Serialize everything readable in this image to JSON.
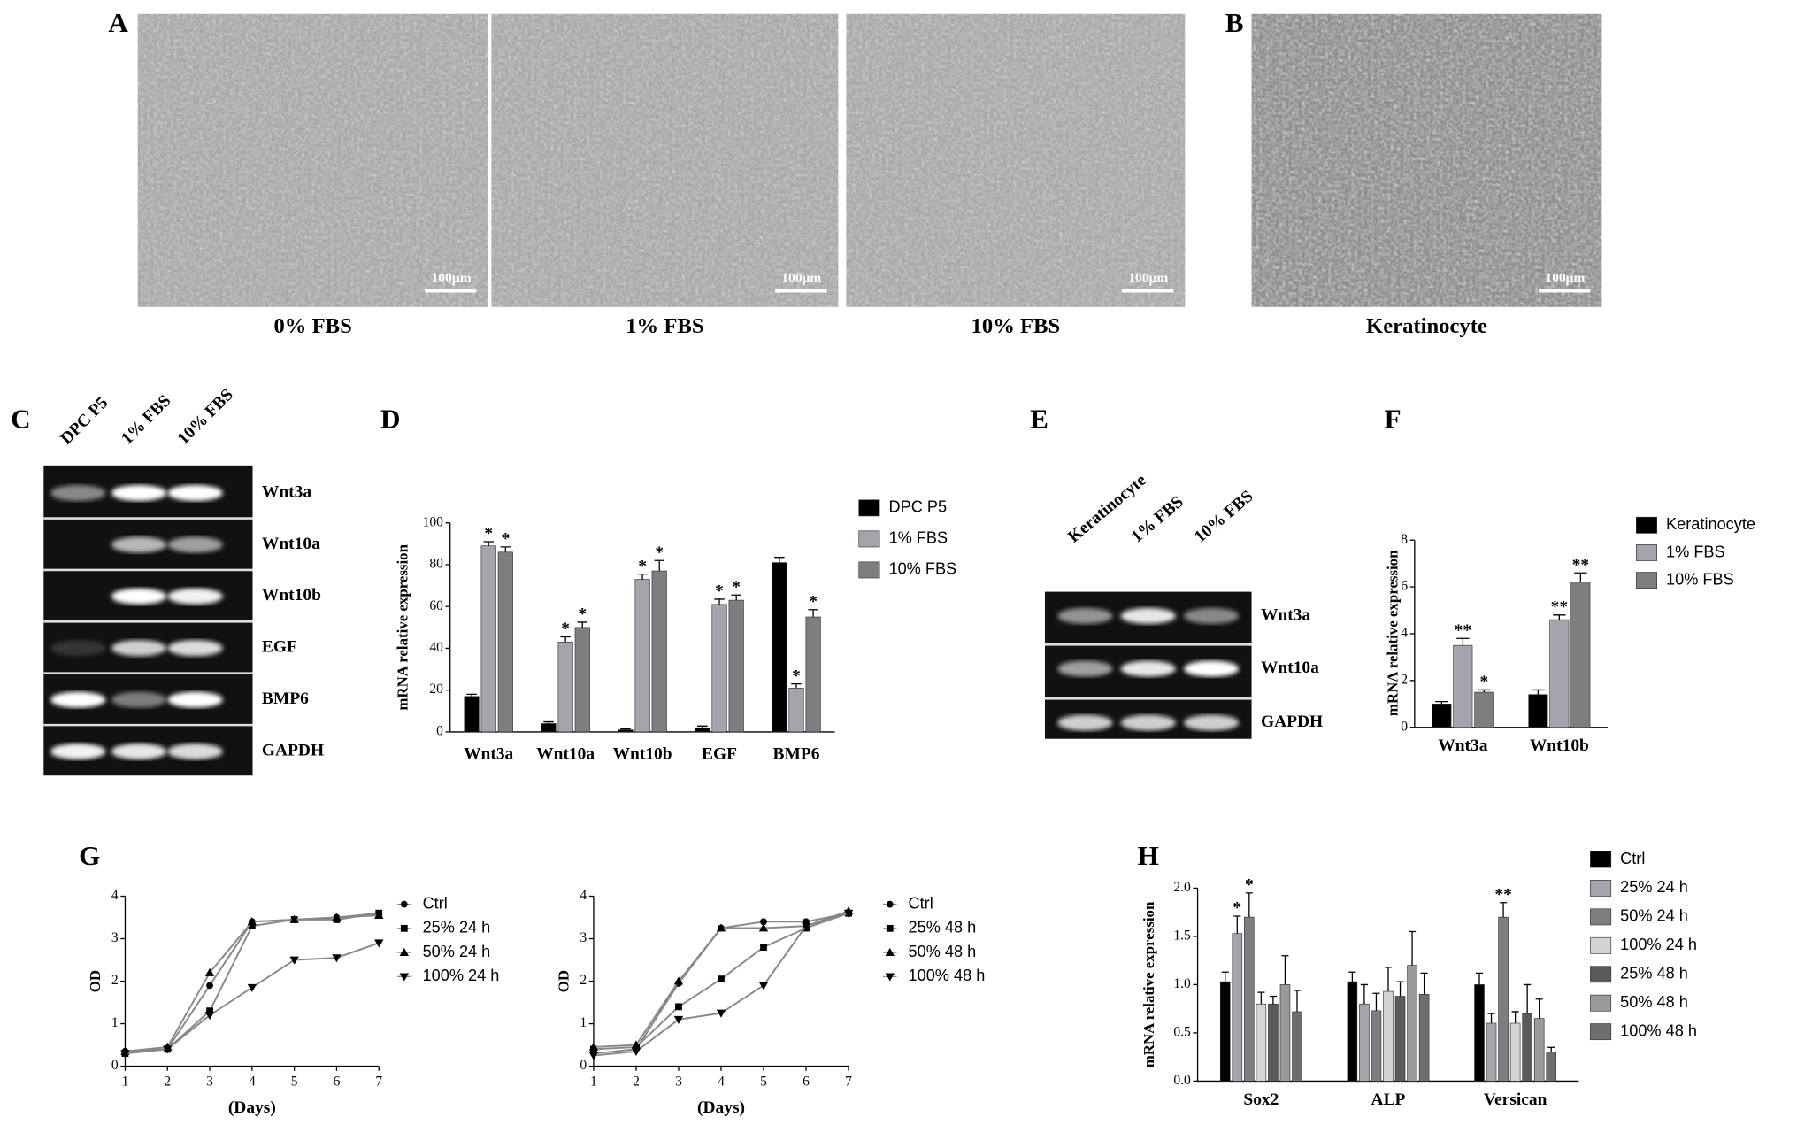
{
  "panel_labels": [
    "A",
    "B",
    "C",
    "D",
    "E",
    "F",
    "G",
    "H"
  ],
  "micrographs": [
    {
      "caption": "0% FBS",
      "scale_bar": "100μm"
    },
    {
      "caption": "1% FBS",
      "scale_bar": "100μm"
    },
    {
      "caption": "10% FBS",
      "scale_bar": "100μm"
    },
    {
      "caption": "Keratinocyte",
      "scale_bar": "100μm"
    }
  ],
  "gels": [
    {
      "lanes": [
        "DPC P5",
        "1% FBS",
        "10% FBS"
      ],
      "bands": [
        "Wnt3a",
        "Wnt10a",
        "Wnt10b",
        "EGF",
        "BMP6",
        "GAPDH"
      ]
    },
    {
      "lanes": [
        "Keratinocyte",
        "1% FBS",
        "10% FBS"
      ],
      "bands": [
        "Wnt3a",
        "Wnt10a",
        "GAPDH"
      ]
    }
  ],
  "chart_data": [
    {
      "type": "bar",
      "y_label": "mRNA relative expression",
      "categories": [
        "Wnt3a",
        "Wnt10a",
        "Wnt10b",
        "EGF",
        "BMP6"
      ],
      "ylim": [
        0,
        100
      ],
      "yticks": [
        0,
        20,
        40,
        60,
        80,
        100
      ],
      "series": [
        {
          "name": "DPC P5",
          "color": "#000000",
          "values": [
            17,
            4,
            1,
            2,
            81
          ],
          "errors": [
            1,
            0.8,
            0.4,
            0.8,
            2.5
          ],
          "annotations": [
            null,
            null,
            null,
            null,
            null
          ]
        },
        {
          "name": "1% FBS",
          "color": "#a4a4ac",
          "values": [
            89,
            43,
            73,
            61,
            21
          ],
          "errors": [
            2,
            2.5,
            2.5,
            2.5,
            2
          ],
          "annotations": [
            "*",
            "*",
            "*",
            "*",
            "*"
          ]
        },
        {
          "name": "10% FBS",
          "color": "#7e7e80",
          "values": [
            86,
            50,
            77,
            63,
            55
          ],
          "errors": [
            2.5,
            2.5,
            5,
            2.5,
            3.5
          ],
          "annotations": [
            "*",
            "*",
            "*",
            "*",
            "*"
          ]
        }
      ]
    },
    {
      "type": "bar",
      "y_label": "mRNA relative expression",
      "categories": [
        "Wnt3a",
        "Wnt10b"
      ],
      "ylim": [
        0,
        8
      ],
      "yticks": [
        0,
        2,
        4,
        6,
        8
      ],
      "series": [
        {
          "name": "Keratinocyte",
          "color": "#000000",
          "values": [
            1.0,
            1.4
          ],
          "errors": [
            0.1,
            0.2
          ],
          "annotations": [
            null,
            null
          ]
        },
        {
          "name": "1% FBS",
          "color": "#a4a4ac",
          "values": [
            3.5,
            4.6
          ],
          "errors": [
            0.3,
            0.2
          ],
          "annotations": [
            "**",
            "**"
          ]
        },
        {
          "name": "10% FBS",
          "color": "#7e7e80",
          "values": [
            1.5,
            6.2
          ],
          "errors": [
            0.1,
            0.4
          ],
          "annotations": [
            "*",
            "**"
          ]
        }
      ]
    },
    {
      "type": "line",
      "y_label": "OD",
      "x_label": "(Days)",
      "line_color": "#888888",
      "x": [
        1,
        2,
        3,
        4,
        5,
        6,
        7
      ],
      "xlim": [
        1,
        7
      ],
      "xticks": [
        1,
        2,
        3,
        4,
        5,
        6,
        7
      ],
      "ylim": [
        0,
        4
      ],
      "yticks": [
        0,
        1,
        2,
        3,
        4
      ],
      "series": [
        {
          "name": "Ctrl",
          "color": "#000000",
          "marker": "circle",
          "values": [
            0.35,
            0.4,
            1.9,
            3.4,
            3.45,
            3.5,
            3.6
          ]
        },
        {
          "name": "25% 24 h",
          "color": "#000000",
          "marker": "square",
          "values": [
            0.3,
            0.4,
            1.3,
            3.3,
            3.45,
            3.45,
            3.6
          ]
        },
        {
          "name": "50% 24 h",
          "color": "#000000",
          "marker": "triangle-up",
          "values": [
            0.35,
            0.45,
            2.2,
            3.4,
            3.45,
            3.5,
            3.55
          ]
        },
        {
          "name": "100% 24 h",
          "color": "#000000",
          "marker": "triangle-down",
          "values": [
            0.3,
            0.4,
            1.2,
            1.85,
            2.5,
            2.55,
            2.9
          ]
        }
      ]
    },
    {
      "type": "line",
      "y_label": "OD",
      "x_label": "(Days)",
      "line_color": "#888888",
      "x": [
        1,
        2,
        3,
        4,
        5,
        6,
        7
      ],
      "xlim": [
        1,
        7
      ],
      "xticks": [
        1,
        2,
        3,
        4,
        5,
        6,
        7
      ],
      "ylim": [
        0,
        4
      ],
      "yticks": [
        0,
        1,
        2,
        3,
        4
      ],
      "series": [
        {
          "name": "Ctrl",
          "color": "#000000",
          "marker": "circle",
          "values": [
            0.3,
            0.4,
            1.95,
            3.25,
            3.4,
            3.4,
            3.6
          ]
        },
        {
          "name": "25% 48 h",
          "color": "#000000",
          "marker": "square",
          "values": [
            0.4,
            0.45,
            1.4,
            2.05,
            2.8,
            3.25,
            3.6
          ]
        },
        {
          "name": "50% 48 h",
          "color": "#000000",
          "marker": "triangle-up",
          "values": [
            0.45,
            0.5,
            2.0,
            3.25,
            3.25,
            3.3,
            3.65
          ]
        },
        {
          "name": "100% 48 h",
          "color": "#000000",
          "marker": "triangle-down",
          "values": [
            0.25,
            0.35,
            1.1,
            1.25,
            1.9,
            3.3,
            3.6
          ]
        }
      ]
    },
    {
      "type": "bar",
      "y_label": "mRNA relative expression",
      "categories": [
        "Sox2",
        "ALP",
        "Versican"
      ],
      "ylim": [
        0,
        2.0
      ],
      "yticks": [
        {
          "value": 0,
          "label": "0.0"
        },
        0.5,
        {
          "value": 1,
          "label": "1.0"
        },
        1.5,
        {
          "value": 2,
          "label": "2.0"
        }
      ],
      "series": [
        {
          "name": "Ctrl",
          "color": "#000000",
          "values": [
            1.03,
            1.03,
            1.0
          ],
          "errors": [
            0.1,
            0.1,
            0.12
          ],
          "annotations": [
            null,
            null,
            null
          ]
        },
        {
          "name": "25% 24 h",
          "color": "#a4a4ac",
          "values": [
            1.53,
            0.8,
            0.6
          ],
          "errors": [
            0.18,
            0.2,
            0.1
          ],
          "annotations": [
            "*",
            null,
            null
          ]
        },
        {
          "name": "50% 24 h",
          "color": "#7e7e80",
          "values": [
            1.7,
            0.73,
            1.7
          ],
          "errors": [
            0.25,
            0.18,
            0.15
          ],
          "annotations": [
            "*",
            null,
            "**"
          ]
        },
        {
          "name": "100% 24 h",
          "color": "#d4d4d4",
          "values": [
            0.8,
            0.93,
            0.6
          ],
          "errors": [
            0.12,
            0.25,
            0.12
          ],
          "annotations": [
            null,
            null,
            null
          ]
        },
        {
          "name": "25% 48 h",
          "color": "#5a5a5a",
          "values": [
            0.8,
            0.88,
            0.7
          ],
          "errors": [
            0.08,
            0.15,
            0.3
          ],
          "annotations": [
            null,
            null,
            null
          ]
        },
        {
          "name": "50% 48 h",
          "color": "#9a9a9a",
          "values": [
            1.0,
            1.2,
            0.65
          ],
          "errors": [
            0.3,
            0.35,
            0.2
          ],
          "annotations": [
            null,
            null,
            null
          ]
        },
        {
          "name": "100% 48 h",
          "color": "#6e6e6e",
          "values": [
            0.72,
            0.9,
            0.3
          ],
          "errors": [
            0.22,
            0.22,
            0.05
          ],
          "annotations": [
            null,
            null,
            null
          ]
        }
      ]
    }
  ]
}
